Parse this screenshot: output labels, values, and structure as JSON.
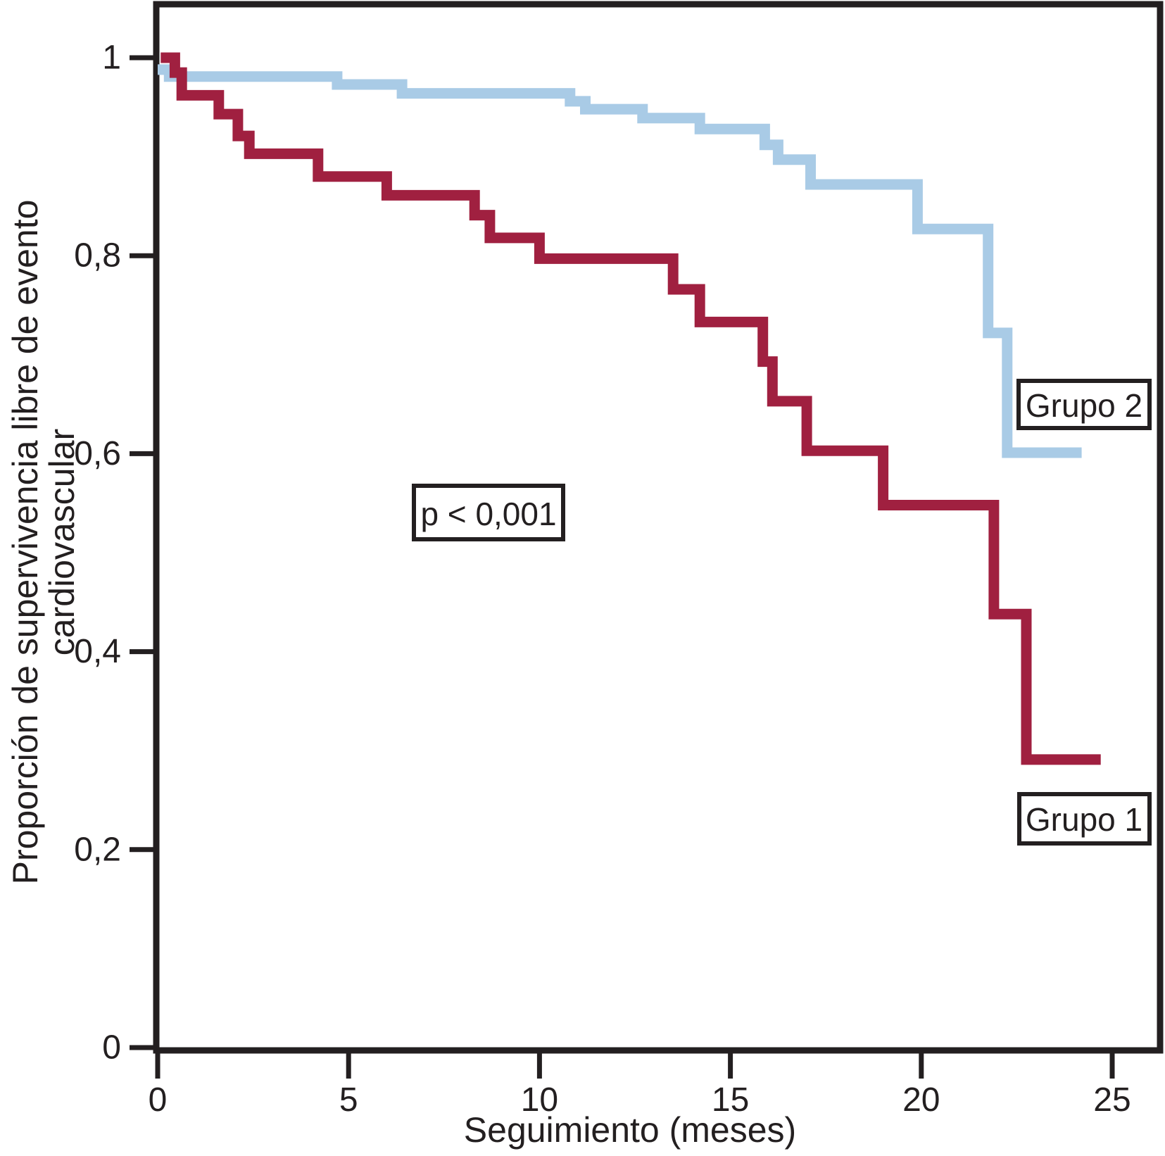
{
  "chart_data": {
    "type": "line",
    "subtype": "kaplan-meier-step",
    "title": "",
    "xlabel": "Seguimiento (meses)",
    "ylabel_line1": "Proporción de supervivencia libre de evento",
    "ylabel_line2": "cardiovascular",
    "xlim": [
      0,
      26.3
    ],
    "ylim": [
      0,
      1.05
    ],
    "grid": false,
    "x_ticks": [
      0,
      5,
      10,
      15,
      20,
      25
    ],
    "x_tick_labels": [
      "0",
      "5",
      "10",
      "15",
      "20",
      "25"
    ],
    "y_ticks": [
      0,
      0.2,
      0.4,
      0.6,
      0.8,
      1
    ],
    "y_tick_labels": [
      "0",
      "0,2",
      "0,4",
      "0,6",
      "0,8",
      "1"
    ],
    "annotations": {
      "p_value": "p < 0,001"
    },
    "series": [
      {
        "name": "Grupo 1",
        "color": "#A02040",
        "end_x": 24.7,
        "steps": [
          [
            0.08,
            1.0
          ],
          [
            0.45,
            0.985
          ],
          [
            0.63,
            0.962
          ],
          [
            1.6,
            0.943
          ],
          [
            2.1,
            0.921
          ],
          [
            2.4,
            0.903
          ],
          [
            4.2,
            0.88
          ],
          [
            6.0,
            0.861
          ],
          [
            8.3,
            0.841
          ],
          [
            8.7,
            0.818
          ],
          [
            10.0,
            0.797
          ],
          [
            13.5,
            0.766
          ],
          [
            14.2,
            0.733
          ],
          [
            15.85,
            0.693
          ],
          [
            16.1,
            0.653
          ],
          [
            17.0,
            0.603
          ],
          [
            19.0,
            0.548
          ],
          [
            21.9,
            0.438
          ],
          [
            22.75,
            0.291
          ]
        ]
      },
      {
        "name": "Grupo 2",
        "color": "#A9CBE6",
        "end_x": 24.2,
        "steps": [
          [
            0.0,
            0.988
          ],
          [
            0.3,
            0.981
          ],
          [
            4.7,
            0.973
          ],
          [
            6.4,
            0.964
          ],
          [
            10.8,
            0.956
          ],
          [
            11.2,
            0.948
          ],
          [
            12.7,
            0.939
          ],
          [
            14.2,
            0.928
          ],
          [
            15.9,
            0.912
          ],
          [
            16.25,
            0.897
          ],
          [
            17.1,
            0.872
          ],
          [
            19.9,
            0.827
          ],
          [
            21.75,
            0.722
          ],
          [
            22.25,
            0.601
          ]
        ]
      }
    ],
    "labels": {
      "group1": "Grupo 1",
      "group2": "Grupo 2"
    },
    "legend_position": "on-curve-boxes",
    "frame_color": "#231f20"
  }
}
